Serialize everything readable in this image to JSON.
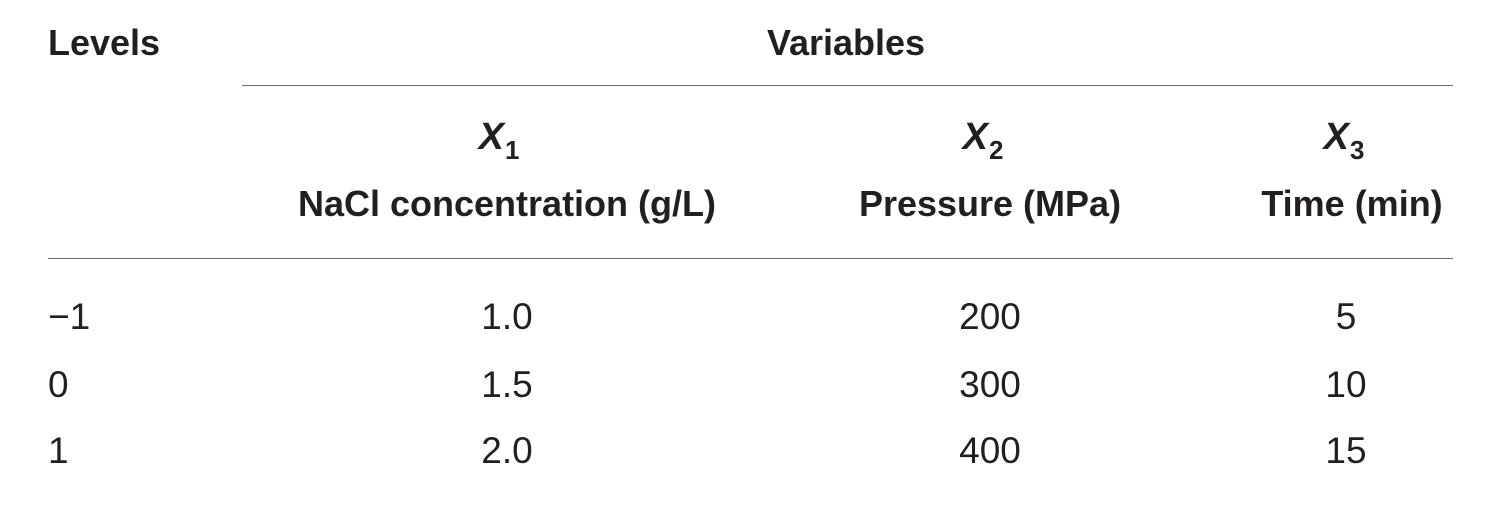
{
  "table": {
    "levels_header": "Levels",
    "variables_header": "Variables",
    "columns": [
      {
        "symbol": "X",
        "subscript": "1",
        "label": "NaCl concentration (g/L)"
      },
      {
        "symbol": "X",
        "subscript": "2",
        "label": "Pressure (MPa)"
      },
      {
        "symbol": "X",
        "subscript": "3",
        "label": "Time (min)"
      }
    ],
    "rows": [
      {
        "level": "−1",
        "values": [
          "1.0",
          "200",
          "5"
        ]
      },
      {
        "level": "0",
        "values": [
          "1.5",
          "300",
          "10"
        ]
      },
      {
        "level": "1",
        "values": [
          "2.0",
          "400",
          "15"
        ]
      }
    ]
  }
}
